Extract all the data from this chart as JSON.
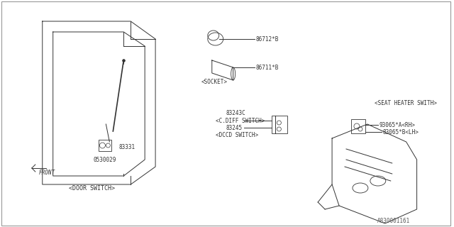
{
  "bg_color": "#ffffff",
  "border_color": "#aaaaaa",
  "line_color": "#333333",
  "text_color": "#333333",
  "title": "",
  "part_number": "A830001161",
  "labels": {
    "door_switch": "<DOOR SWITCH>",
    "socket": "<SOCKET>",
    "seat_heater": "<SEAT HEATER SWITH>",
    "cdiff_switch": "<C.DIFF SWITCH>",
    "dccd_switch": "<DCCD SWITCH>",
    "front": "FRONT",
    "p83331": "83331",
    "p0530029": "0530029",
    "p86712": "86712*B",
    "p86711": "86711*B",
    "p93065a": "93065*A<RH>",
    "p83065b": "83065*B<LH>",
    "p83243c": "83243C",
    "p83245": "83245"
  }
}
